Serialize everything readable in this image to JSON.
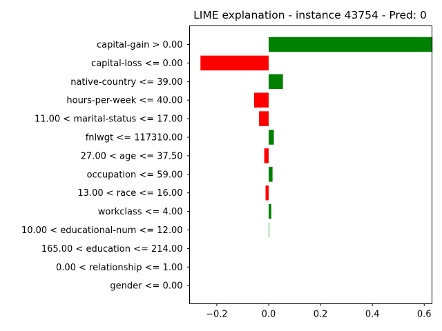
{
  "chart_data": {
    "type": "bar",
    "orientation": "horizontal",
    "title": "LIME explanation - instance 43754 - Pred: 0",
    "xlabel": "",
    "ylabel": "",
    "xlim": [
      -0.305,
      0.63
    ],
    "xticks": [
      -0.2,
      0.0,
      0.2,
      0.4,
      0.6
    ],
    "xtick_labels": [
      "−0.2",
      "0.0",
      "0.2",
      "0.4",
      "0.6"
    ],
    "grid": false,
    "legend": "none",
    "positive_color": "#008000",
    "negative_color": "#ff0000",
    "categories": [
      "capital-gain > 0.00",
      "capital-loss <= 0.00",
      "native-country <= 39.00",
      "hours-per-week <= 40.00",
      "11.00 < marital-status <= 17.00",
      "fnlwgt <= 117310.00",
      "27.00 < age <= 37.50",
      "occupation <= 59.00",
      "13.00 < race <= 16.00",
      "workclass <= 4.00",
      "10.00 < educational-num <= 12.00",
      "165.00 < education <= 214.00",
      "0.00 < relationship <= 1.00",
      "gender <= 0.00"
    ],
    "values": [
      0.632,
      -0.263,
      0.055,
      -0.056,
      -0.037,
      0.02,
      -0.017,
      0.015,
      -0.012,
      0.01,
      0.002,
      0.0,
      0.0,
      0.0
    ]
  }
}
